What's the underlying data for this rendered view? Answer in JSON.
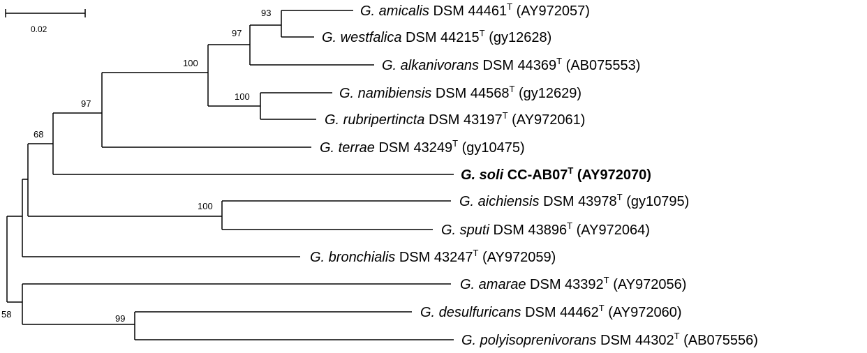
{
  "scale_bar": {
    "label": "0.02"
  },
  "taxa": [
    {
      "species": "G. amicalis",
      "strain": "DSM 44461",
      "sup": "T",
      "accession": "(AY972057)",
      "bold": false
    },
    {
      "species": "G. westfalica",
      "strain": "DSM 44215",
      "sup": "T",
      "accession": "(gy12628)",
      "bold": false
    },
    {
      "species": "G. alkanivorans",
      "strain": "DSM 44369",
      "sup": "T",
      "accession": "(AB075553)",
      "bold": false
    },
    {
      "species": "G. namibiensis",
      "strain": "DSM 44568",
      "sup": "T",
      "accession": "(gy12629)",
      "bold": false
    },
    {
      "species": "G. rubripertincta",
      "strain": "DSM 43197",
      "sup": "T",
      "accession": "(AY972061)",
      "bold": false
    },
    {
      "species": "G. terrae",
      "strain": "DSM 43249",
      "sup": "T",
      "accession": "(gy10475)",
      "bold": false
    },
    {
      "species": "G. soli",
      "strain": "CC-AB07",
      "sup": "T",
      "accession": "(AY972070)",
      "bold": true
    },
    {
      "species": "G. aichiensis",
      "strain": "DSM 43978",
      "sup": "T",
      "accession": "(gy10795)",
      "bold": false
    },
    {
      "species": "G. sputi",
      "strain": "DSM 43896",
      "sup": "T",
      "accession": "(AY972064)",
      "bold": false
    },
    {
      "species": "G. bronchialis",
      "strain": "DSM 43247",
      "sup": "T",
      "accession": "(AY972059)",
      "bold": false
    },
    {
      "species": "G. amarae",
      "strain": "DSM 43392",
      "sup": "T",
      "accession": "(AY972056)",
      "bold": false
    },
    {
      "species": "G. desulfuricans",
      "strain": "DSM 44462",
      "sup": "T",
      "accession": "(AY972060)",
      "bold": false
    },
    {
      "species": "G. polyisoprenivorans",
      "strain": "DSM 44302",
      "sup": "T",
      "accession": "(AB075556)",
      "bold": false
    }
  ],
  "bootstrap": [
    "93",
    "97",
    "100",
    "100",
    "97",
    "68",
    "100",
    "99",
    "58"
  ]
}
